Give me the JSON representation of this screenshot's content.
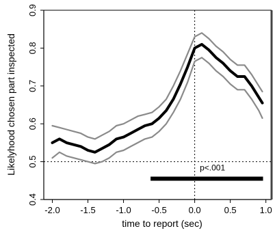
{
  "chart_data": {
    "type": "line",
    "title": "",
    "xlabel": "time to report (sec)",
    "ylabel": "Likelyhood chosen part inspected",
    "xlim": [
      -2.12,
      1.08
    ],
    "ylim": [
      0.4,
      0.9
    ],
    "xticks": [
      -2.0,
      -1.5,
      -1.0,
      -0.5,
      0.0,
      0.5,
      1.0
    ],
    "xtick_labels": [
      "-2.0",
      "-1.5",
      "-1.0",
      "-0.5",
      "0.0",
      "0.5",
      "1.0"
    ],
    "yticks": [
      0.4,
      0.5,
      0.6,
      0.7,
      0.8,
      0.9
    ],
    "ytick_labels": [
      "0.4",
      "0.5",
      "0.6",
      "0.7",
      "0.8",
      "0.9"
    ],
    "grid": false,
    "reference_lines": {
      "x": 0.0,
      "y": 0.5
    },
    "x": [
      -2.0,
      -1.9,
      -1.8,
      -1.7,
      -1.6,
      -1.5,
      -1.4,
      -1.3,
      -1.2,
      -1.1,
      -1.0,
      -0.9,
      -0.8,
      -0.7,
      -0.6,
      -0.5,
      -0.4,
      -0.3,
      -0.2,
      -0.1,
      0.0,
      0.1,
      0.2,
      0.3,
      0.4,
      0.5,
      0.6,
      0.7,
      0.8,
      0.9,
      0.95
    ],
    "series": [
      {
        "role": "mean",
        "values": [
          0.55,
          0.56,
          0.55,
          0.545,
          0.54,
          0.53,
          0.525,
          0.535,
          0.545,
          0.56,
          0.565,
          0.575,
          0.585,
          0.595,
          0.6,
          0.615,
          0.635,
          0.665,
          0.705,
          0.75,
          0.8,
          0.81,
          0.795,
          0.775,
          0.76,
          0.74,
          0.725,
          0.725,
          0.7,
          0.67,
          0.655
        ]
      },
      {
        "role": "upper",
        "values": [
          0.595,
          0.59,
          0.585,
          0.58,
          0.575,
          0.565,
          0.56,
          0.57,
          0.58,
          0.595,
          0.6,
          0.61,
          0.62,
          0.625,
          0.63,
          0.645,
          0.665,
          0.7,
          0.74,
          0.785,
          0.83,
          0.84,
          0.825,
          0.805,
          0.79,
          0.77,
          0.755,
          0.755,
          0.73,
          0.7,
          0.685
        ]
      },
      {
        "role": "lower",
        "values": [
          0.51,
          0.525,
          0.515,
          0.51,
          0.505,
          0.5,
          0.495,
          0.5,
          0.51,
          0.525,
          0.53,
          0.54,
          0.55,
          0.56,
          0.565,
          0.58,
          0.6,
          0.63,
          0.665,
          0.71,
          0.765,
          0.775,
          0.76,
          0.74,
          0.725,
          0.705,
          0.69,
          0.69,
          0.665,
          0.635,
          0.615
        ]
      }
    ],
    "significance_bar": {
      "x_start": -0.62,
      "x_end": 0.96,
      "y": 0.455,
      "label": "p<.001"
    }
  }
}
